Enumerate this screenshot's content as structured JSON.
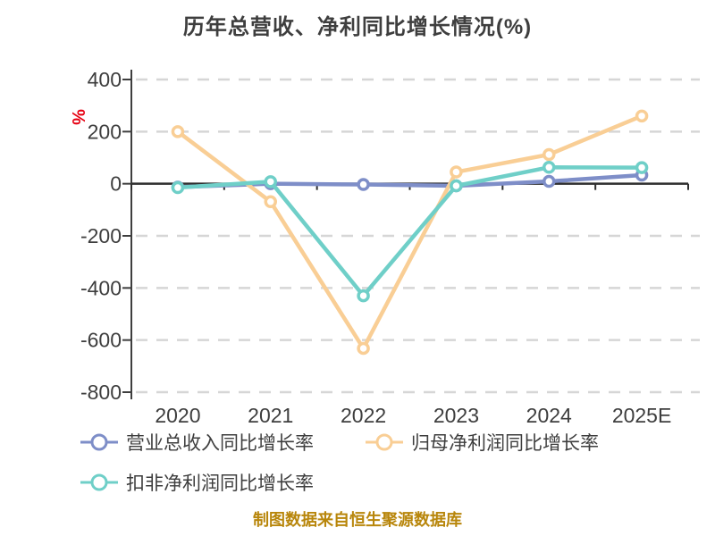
{
  "title": "历年总营收、净利同比增长情况(%)",
  "y_axis_unit": "%",
  "footer_note": "制图数据来自恒生聚源数据库",
  "colors": {
    "revenue": "#7E8EC8",
    "net_profit": "#F9CE95",
    "non_gaap": "#6FCFC8",
    "grid": "#D6D6D6",
    "axis": "#3E3E3E",
    "zero_line": "#2E2E2E",
    "unit_label": "#E60012",
    "footer": "#B8860B",
    "title": "#3E3E3E"
  },
  "legend": [
    {
      "label": "营业总收入同比增长率",
      "series_key": "revenue"
    },
    {
      "label": "归母净利润同比增长率",
      "series_key": "net_profit"
    },
    {
      "label": "扣非净利润同比增长率",
      "series_key": "non_gaap"
    }
  ],
  "chart_data": {
    "type": "line",
    "title": "历年总营收、净利同比增长情况(%)",
    "categories": [
      "2020",
      "2021",
      "2022",
      "2023",
      "2024",
      "2025E"
    ],
    "series": [
      {
        "name": "营业总收入同比增长率",
        "color_key": "revenue",
        "values": [
          -13,
          0,
          -3,
          -8,
          9,
          33
        ]
      },
      {
        "name": "归母净利润同比增长率",
        "color_key": "net_profit",
        "values": [
          200,
          -69,
          -632,
          45,
          112,
          260
        ]
      },
      {
        "name": "扣非净利润同比增长率",
        "color_key": "non_gaap",
        "values": [
          -15,
          8,
          -430,
          -8,
          63,
          62
        ]
      }
    ],
    "ylabel": "%",
    "ylim": [
      -800,
      400
    ],
    "yticks": [
      400,
      200,
      0,
      -200,
      -400,
      -600,
      -800
    ],
    "grid": "dashed-horizontal",
    "legend_position": "bottom-left",
    "marker": "circle-white-center"
  }
}
